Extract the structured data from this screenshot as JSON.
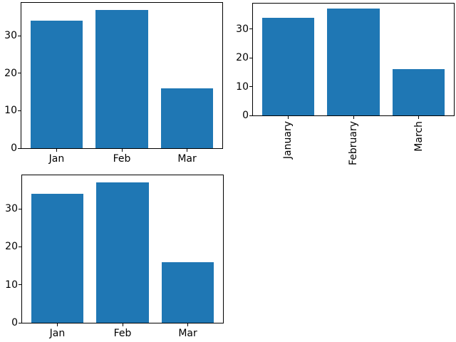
{
  "figure": {
    "background": "#ffffff"
  },
  "colors": {
    "bar": "#1f77b4",
    "axis": "#000000",
    "text": "#000000"
  },
  "chart_data": [
    {
      "type": "bar",
      "position": "top-left",
      "title": "",
      "xlabel": "",
      "ylabel": "",
      "categories": [
        "Jan",
        "Feb",
        "Mar"
      ],
      "values": [
        34,
        37,
        16
      ],
      "yticks": [
        0,
        10,
        20,
        30
      ],
      "ylim": [
        0,
        38.85
      ],
      "xtick_rotation": 0,
      "bar_color": "#1f77b4",
      "grid": false,
      "legend": false
    },
    {
      "type": "bar",
      "position": "top-right",
      "title": "",
      "xlabel": "",
      "ylabel": "",
      "categories": [
        "January",
        "February",
        "March"
      ],
      "values": [
        34,
        37,
        16
      ],
      "yticks": [
        0,
        10,
        20,
        30
      ],
      "ylim": [
        0,
        38.85
      ],
      "xtick_rotation": 90,
      "bar_color": "#1f77b4",
      "grid": false,
      "legend": false
    },
    {
      "type": "bar",
      "position": "bottom-left",
      "title": "",
      "xlabel": "",
      "ylabel": "",
      "categories": [
        "Jan",
        "Feb",
        "Mar"
      ],
      "values": [
        34,
        37,
        16
      ],
      "yticks": [
        0,
        10,
        20,
        30
      ],
      "ylim": [
        0,
        38.85
      ],
      "xtick_rotation": 0,
      "bar_color": "#1f77b4",
      "grid": false,
      "legend": false
    }
  ]
}
